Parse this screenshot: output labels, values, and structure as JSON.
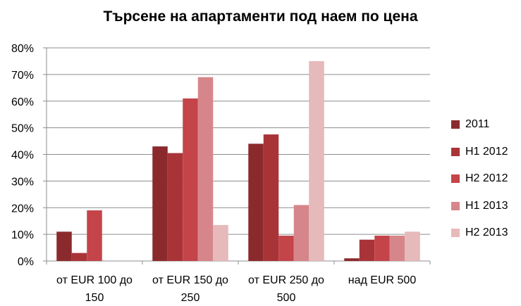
{
  "chart_data": {
    "type": "bar",
    "title": "Търсене на апартаменти под наем по цена",
    "xlabel": "",
    "ylabel": "",
    "categories": [
      [
        "от EUR 100 до",
        "150"
      ],
      [
        "от EUR 150 до",
        "250"
      ],
      [
        "от EUR 250 до",
        "500"
      ],
      [
        "над EUR 500"
      ]
    ],
    "ylim": [
      0,
      80
    ],
    "yticks": [
      {
        "value": 0,
        "label": "0%"
      },
      {
        "value": 10,
        "label": "10%"
      },
      {
        "value": 20,
        "label": "20%"
      },
      {
        "value": 30,
        "label": "30%"
      },
      {
        "value": 40,
        "label": "40%"
      },
      {
        "value": 50,
        "label": "50%"
      },
      {
        "value": 60,
        "label": "60%"
      },
      {
        "value": 70,
        "label": "70%"
      },
      {
        "value": 80,
        "label": "80%"
      }
    ],
    "grid": true,
    "legend_position": "right",
    "series": [
      {
        "name": "2011",
        "color": "#8b2a2d",
        "values": [
          11,
          43,
          44,
          1
        ]
      },
      {
        "name": "H1 2012",
        "color": "#a93438",
        "values": [
          3,
          40.5,
          47.5,
          8
        ]
      },
      {
        "name": "H2 2012",
        "color": "#c44449",
        "values": [
          19,
          61,
          9.5,
          9.5
        ]
      },
      {
        "name": "H1 2013",
        "color": "#d6868a",
        "values": [
          0,
          69,
          21,
          9.5
        ]
      },
      {
        "name": "H2 2013",
        "color": "#e6b9ba",
        "values": [
          0,
          13.5,
          75,
          11
        ]
      }
    ]
  }
}
